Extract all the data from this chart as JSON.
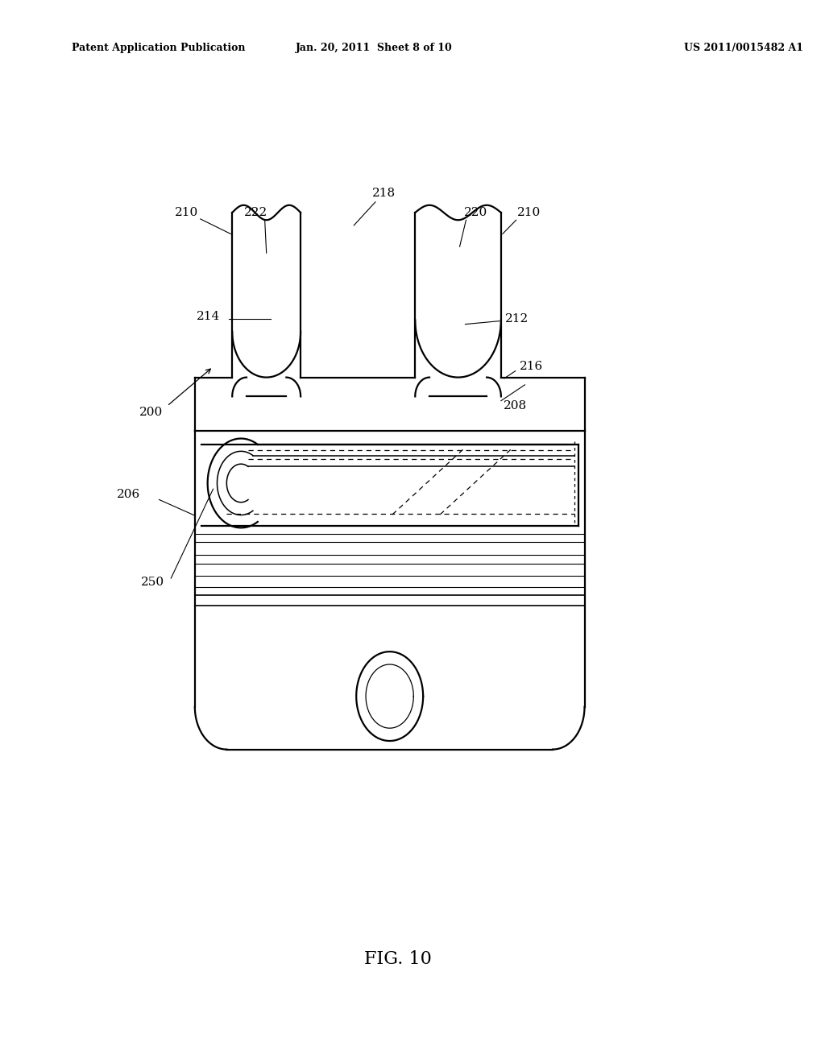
{
  "bg_color": "#ffffff",
  "line_color": "#000000",
  "header_left": "Patent Application Publication",
  "header_center": "Jan. 20, 2011  Sheet 8 of 10",
  "header_right": "US 2011/0015482 A1",
  "figure_label": "FIG. 10"
}
